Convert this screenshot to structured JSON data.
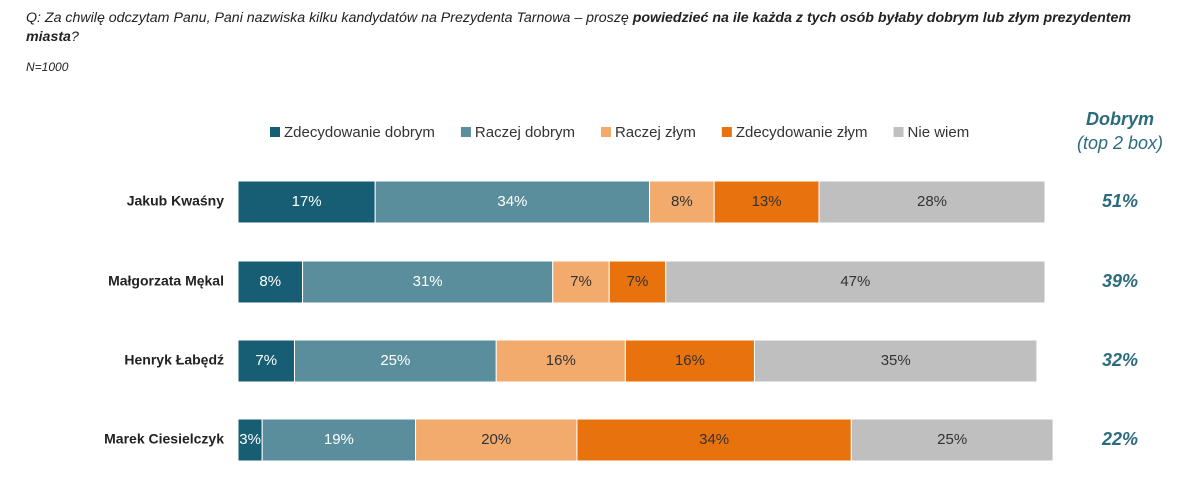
{
  "chart_data": {
    "type": "stacked-bar",
    "question": {
      "intro": "Q: Za chwilę odczytam Panu, Pani nazwiska kilku kandydatów na Prezydenta Tarnowa – proszę ",
      "emphasis": "powiedzieć na ile każda z tych osób byłaby dobrym lub złym prezydentem miasta",
      "end": "?"
    },
    "note": "N=1000",
    "categories": [
      "Jakub Kwaśny",
      "Małgorzata Mękal",
      "Henryk Łabędź",
      "Marek Ciesielczyk"
    ],
    "xlim": [
      0,
      100
    ],
    "series": [
      {
        "name": "Zdecydowanie dobrym",
        "color": "#175e74",
        "values": [
          17,
          8,
          7,
          3
        ],
        "value_labels": [
          "17%",
          "8%",
          "7%",
          "3%"
        ]
      },
      {
        "name": "Raczej dobrym",
        "color": "#5a8e9c",
        "values": [
          34,
          31,
          25,
          19
        ],
        "value_labels": [
          "34%",
          "31%",
          "25%",
          "19%"
        ]
      },
      {
        "name": "Raczej złym",
        "color": "#f2ab6c",
        "values": [
          8,
          7,
          16,
          20
        ],
        "value_labels": [
          "8%",
          "7%",
          "16%",
          "20%"
        ]
      },
      {
        "name": "Zdecydowanie złym",
        "color": "#e8730e",
        "values": [
          13,
          7,
          16,
          34
        ],
        "value_labels": [
          "13%",
          "7%",
          "16%",
          "34%"
        ]
      },
      {
        "name": "Nie wiem",
        "color": "#bfbfbf",
        "values": [
          28,
          47,
          35,
          25
        ],
        "value_labels": [
          "28%",
          "47%",
          "35%",
          "25%"
        ]
      }
    ],
    "top2": {
      "title": "Dobrym",
      "subtitle": "(top 2 box)",
      "color": "#2c6b7e",
      "values": [
        51,
        39,
        32,
        22
      ],
      "value_labels": [
        "51%",
        "39%",
        "32%",
        "22%"
      ]
    }
  }
}
